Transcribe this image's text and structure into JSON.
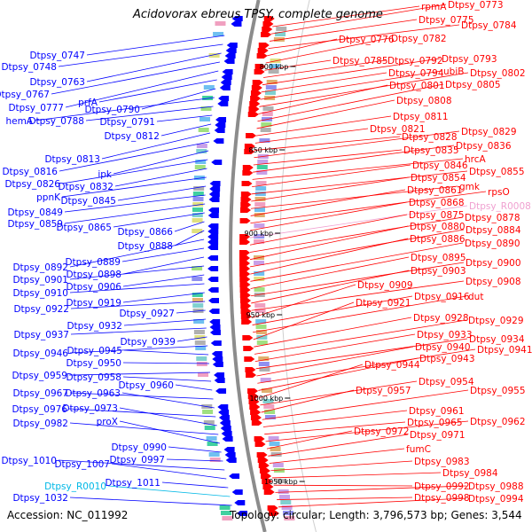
{
  "title": "Acidovorax ebreus TPSY, complete genome",
  "accession_text": "Accession: NC_011992",
  "stats_text": "Topology: circular; Length: 3,796,573 bp; Genes: 3,544",
  "colors": {
    "left": "#0000ff",
    "right": "#ff0000",
    "rna_left": "#00b8e6",
    "rna_right": "#f0a0d0",
    "marker": "#3a8a2a"
  },
  "kbp_markers": [
    "800 kbp",
    "850 kbp",
    "900 kbp",
    "950 kbp",
    "1000 kbp",
    "1050 kbp"
  ],
  "left_labels": [
    "Dtpsy_0747",
    "Dtpsy_0748",
    "Dtpsy_0763",
    "Dtpsy_0767",
    "Dtpsy_0777",
    "prfA",
    "Dtpsy_0790",
    "hemA",
    "Dtpsy_0788",
    "Dtpsy_0791",
    "Dtpsy_0812",
    "Dtpsy_0813",
    "Dtpsy_0816",
    "ipk",
    "Dtpsy_0826",
    "Dtpsy_0832",
    "ppnK",
    "Dtpsy_0845",
    "Dtpsy_0849",
    "Dtpsy_0859",
    "Dtpsy_0865",
    "Dtpsy_0866",
    "Dtpsy_0888",
    "Dtpsy_0892",
    "Dtpsy_0889",
    "Dtpsy_0898",
    "Dtpsy_0901",
    "Dtpsy_0906",
    "Dtpsy_0910",
    "Dtpsy_0919",
    "Dtpsy_0922",
    "Dtpsy_0927",
    "Dtpsy_0932",
    "Dtpsy_0937",
    "Dtpsy_0939",
    "Dtpsy_0946",
    "Dtpsy_0945",
    "Dtpsy_0950",
    "Dtpsy_0959",
    "Dtpsy_0958",
    "Dtpsy_0960",
    "Dtpsy_0967",
    "Dtpsy_0963",
    "Dtpsy_0976",
    "Dtpsy_0973",
    "Dtpsy_0982",
    "proX",
    "Dtpsy_0990",
    "Dtpsy_0997",
    "Dtpsy_1010",
    "Dtpsy_1007",
    "Dtpsy_1011",
    "Dtpsy_R0010",
    "Dtpsy_1032"
  ],
  "right_labels": [
    "rpmA",
    "Dtpsy_0773",
    "Dtpsy_0775",
    "Dtpsy_0784",
    "Dtpsy_0776",
    "Dtpsy_0782",
    "Dtpsy_0785",
    "Dtpsy_0792",
    "Dtpsy_0793",
    "Dtpsy_0794",
    "ubiB",
    "Dtpsy_0802",
    "Dtpsy_0801",
    "Dtpsy_0805",
    "Dtpsy_0808",
    "Dtpsy_0811",
    "Dtpsy_0821",
    "Dtpsy_0828",
    "Dtpsy_0829",
    "Dtpsy_0835",
    "Dtpsy_0836",
    "hrcA",
    "Dtpsy_0846",
    "Dtpsy_0855",
    "Dtpsy_0854",
    "gmk",
    "Dtpsy_0861",
    "rpsO",
    "Dtpsy_0868",
    "Dtpsy_R0008",
    "Dtpsy_0875",
    "Dtpsy_0878",
    "Dtpsy_0880",
    "Dtpsy_0884",
    "Dtpsy_0886",
    "Dtpsy_0890",
    "Dtpsy_0895",
    "Dtpsy_0900",
    "Dtpsy_0903",
    "Dtpsy_0908",
    "Dtpsy_0909",
    "Dtpsy_0916",
    "dut",
    "Dtpsy_0921",
    "Dtpsy_0928",
    "Dtpsy_0929",
    "Dtpsy_0933",
    "Dtpsy_0934",
    "Dtpsy_0940",
    "Dtpsy_0941",
    "Dtpsy_0943",
    "Dtpsy_0944",
    "Dtpsy_0954",
    "Dtpsy_0957",
    "Dtpsy_0955",
    "Dtpsy_0961",
    "Dtpsy_0965",
    "Dtpsy_0962",
    "Dtpsy_0972",
    "Dtpsy_0971",
    "fumC",
    "Dtpsy_0983",
    "Dtpsy_0984",
    "Dtpsy_0992",
    "Dtpsy_0988",
    "Dtpsy_0998",
    "Dtpsy_0994"
  ]
}
